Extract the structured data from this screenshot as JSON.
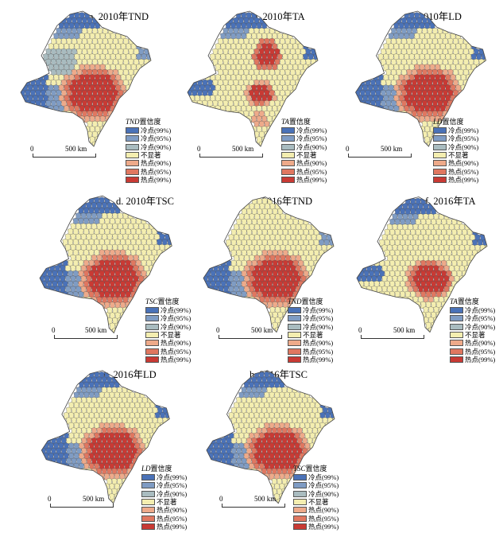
{
  "colors": {
    "cold99": "#4a72b8",
    "cold95": "#7f9cc4",
    "cold90": "#a9bcc0",
    "ns": "#f4eeb0",
    "hot90": "#eeaa8a",
    "hot95": "#e07760",
    "hot99": "#c93a34"
  },
  "legend_items": [
    "冷点(99%)",
    "冷点(95%)",
    "冷点(90%)",
    "不显著",
    "热点(90%)",
    "热点(95%)",
    "热点(99%)"
  ],
  "legend_suffix": "置信度",
  "scale": {
    "zero": "0",
    "km": "500 km"
  },
  "panels": [
    {
      "title": "a. 2010年TND",
      "var": "TND",
      "hot_level": "large",
      "cold": "strong-west"
    },
    {
      "title": "b. 2010年TA",
      "var": "TA",
      "hot_level": "small",
      "cold": "north"
    },
    {
      "title": "c. 2010年LD",
      "var": "LD",
      "hot_level": "large",
      "cold": "west-north"
    },
    {
      "title": "d. 2010年TSC",
      "var": "TSC",
      "hot_level": "large",
      "cold": "west-north"
    },
    {
      "title": "e. 2016年TND",
      "var": "TND",
      "hot_level": "large",
      "cold": "west"
    },
    {
      "title": "f. 2016年TA",
      "var": "TA",
      "hot_level": "medium",
      "cold": "north"
    },
    {
      "title": "g. 2016年LD",
      "var": "LD",
      "hot_level": "large",
      "cold": "west-north"
    },
    {
      "title": "h. 2016年TSC",
      "var": "TSC",
      "hot_level": "large",
      "cold": "west-north"
    }
  ]
}
